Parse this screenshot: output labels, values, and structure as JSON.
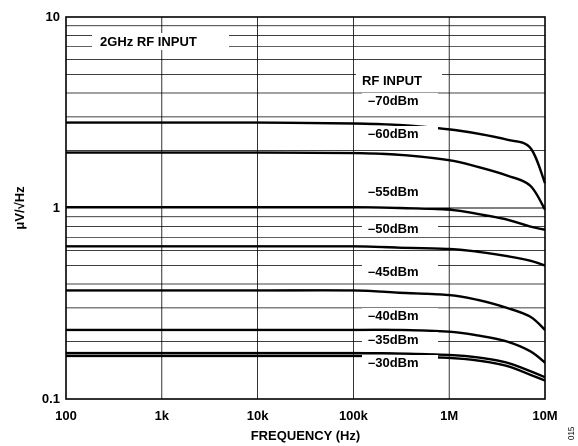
{
  "chart_data": {
    "type": "line",
    "xscale": "log",
    "yscale": "log",
    "xlim": [
      100,
      10000000
    ],
    "ylim": [
      0.1,
      10
    ],
    "grid": true,
    "xlabel": "FREQUENCY (Hz)",
    "ylabel": "μV/√Hz",
    "x_tick_labels": [
      {
        "value": 100,
        "label": "100"
      },
      {
        "value": 1000,
        "label": "1k"
      },
      {
        "value": 10000,
        "label": "10k"
      },
      {
        "value": 100000,
        "label": "100k"
      },
      {
        "value": 1000000,
        "label": "1M"
      },
      {
        "value": 10000000,
        "label": "10M"
      }
    ],
    "y_tick_labels": [
      {
        "value": 10,
        "label": "10"
      },
      {
        "value": 1,
        "label": "1"
      },
      {
        "value": 0.1,
        "label": "0.1"
      }
    ],
    "annotations": {
      "condition": "2GHz RF INPUT",
      "series_header": "RF INPUT"
    },
    "series": [
      {
        "name": "–70dBm",
        "x": [
          100,
          1000,
          10000,
          100000,
          300000,
          1000000,
          2000000,
          4000000,
          7000000,
          10000000
        ],
        "y": [
          2.8,
          2.8,
          2.8,
          2.77,
          2.72,
          2.58,
          2.45,
          2.28,
          2.07,
          1.35
        ]
      },
      {
        "name": "–60dBm",
        "x": [
          100,
          1000,
          10000,
          100000,
          300000,
          1000000,
          2000000,
          4000000,
          7000000,
          10000000
        ],
        "y": [
          1.95,
          1.95,
          1.95,
          1.94,
          1.9,
          1.78,
          1.64,
          1.48,
          1.31,
          0.98
        ]
      },
      {
        "name": "–55dBm",
        "x": [
          100,
          1000,
          10000,
          100000,
          300000,
          1000000,
          2000000,
          4000000,
          7000000,
          10000000
        ],
        "y": [
          1.01,
          1.01,
          1.01,
          1.01,
          1.0,
          0.98,
          0.93,
          0.87,
          0.8,
          0.77
        ]
      },
      {
        "name": "–50dBm",
        "x": [
          100,
          1000,
          10000,
          100000,
          300000,
          1000000,
          2000000,
          4000000,
          7000000,
          10000000
        ],
        "y": [
          0.63,
          0.63,
          0.63,
          0.63,
          0.62,
          0.61,
          0.59,
          0.56,
          0.53,
          0.5
        ]
      },
      {
        "name": "–45dBm",
        "x": [
          100,
          1000,
          10000,
          100000,
          300000,
          1000000,
          2000000,
          4000000,
          7000000,
          10000000
        ],
        "y": [
          0.37,
          0.37,
          0.37,
          0.37,
          0.36,
          0.35,
          0.33,
          0.3,
          0.27,
          0.23
        ]
      },
      {
        "name": "–40dBm",
        "x": [
          100,
          1000,
          10000,
          100000,
          300000,
          1000000,
          2000000,
          4000000,
          7000000,
          10000000
        ],
        "y": [
          0.23,
          0.23,
          0.23,
          0.23,
          0.23,
          0.225,
          0.215,
          0.2,
          0.178,
          0.155
        ]
      },
      {
        "name": "–35dBm",
        "x": [
          100,
          1000,
          10000,
          100000,
          300000,
          1000000,
          2000000,
          4000000,
          7000000,
          10000000
        ],
        "y": [
          0.174,
          0.174,
          0.174,
          0.174,
          0.173,
          0.17,
          0.165,
          0.155,
          0.14,
          0.13
        ]
      },
      {
        "name": "–30dBm",
        "x": [
          100,
          1000,
          10000,
          100000,
          300000,
          1000000,
          2000000,
          4000000,
          7000000,
          10000000
        ],
        "y": [
          0.168,
          0.168,
          0.168,
          0.168,
          0.167,
          0.164,
          0.159,
          0.149,
          0.134,
          0.125
        ]
      }
    ]
  },
  "figure_id": "015"
}
